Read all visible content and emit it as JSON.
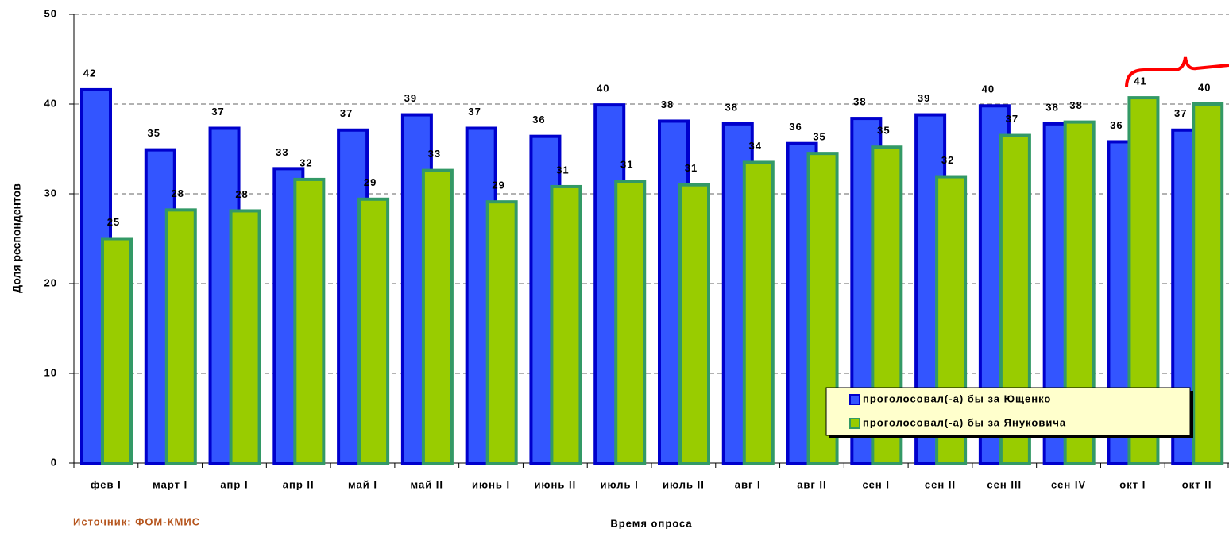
{
  "chart_data": {
    "type": "bar",
    "x_label": "Время опроса",
    "y_label": "Доля респондентов",
    "source": "Источник: ФОМ-КМИС",
    "categories": [
      "фев I",
      "март I",
      "апр I",
      "апр II",
      "май I",
      "май II",
      "июнь I",
      "июнь II",
      "июль I",
      "июль II",
      "авг I",
      "авг II",
      "сен I",
      "сен II",
      "сен III",
      "сен IV",
      "окт I",
      "окт II"
    ],
    "series": [
      {
        "name": "проголосовал(-а) бы за Ющенко",
        "color": "#3355ff",
        "edge": "#0000cc",
        "values": [
          41.6,
          34.9,
          37.3,
          32.8,
          37.1,
          38.8,
          37.3,
          36.4,
          39.9,
          38.1,
          37.8,
          35.6,
          38.4,
          38.8,
          39.8,
          37.8,
          35.8,
          37.1
        ],
        "value_labels": [
          "42",
          "35",
          "37",
          "33",
          "37",
          "39",
          "37",
          "36",
          "40",
          "38",
          "38",
          "36",
          "38",
          "39",
          "40",
          "38",
          "36",
          "37"
        ]
      },
      {
        "name": "проголосовал(-а) бы за Януковича",
        "color": "#99cc00",
        "edge": "#339966",
        "values": [
          25.0,
          28.2,
          28.1,
          31.6,
          29.4,
          32.6,
          29.1,
          30.8,
          31.4,
          31.0,
          33.5,
          34.5,
          35.2,
          31.9,
          36.5,
          38.0,
          40.7,
          40.0
        ],
        "value_labels": [
          "25",
          "28",
          "28",
          "32",
          "29",
          "33",
          "29",
          "31",
          "31",
          "31",
          "34",
          "35",
          "35",
          "32",
          "37",
          "38",
          "41",
          "40"
        ]
      }
    ],
    "ylim": [
      0,
      50
    ],
    "yticks": [
      0,
      10,
      20,
      30,
      40,
      50
    ],
    "grid": true
  }
}
